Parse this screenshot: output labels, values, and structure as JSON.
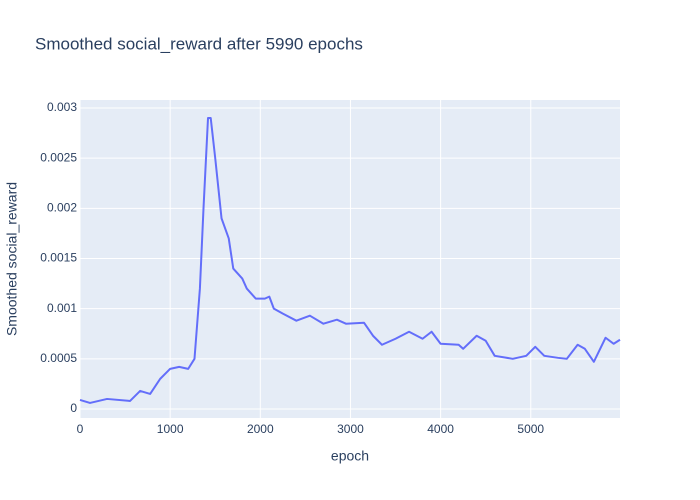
{
  "chart_data": {
    "type": "line",
    "title": "Smoothed social_reward after 5990 epochs",
    "x_label": "epoch",
    "y_label": "Smoothed social_reward",
    "x": [
      0,
      111,
      300,
      555,
      667,
      778,
      889,
      1000,
      1100,
      1200,
      1270,
      1330,
      1370,
      1420,
      1450,
      1500,
      1570,
      1650,
      1700,
      1800,
      1850,
      1950,
      2050,
      2100,
      2150,
      2250,
      2400,
      2550,
      2700,
      2850,
      2950,
      3150,
      3250,
      3350,
      3500,
      3650,
      3800,
      3900,
      4000,
      4200,
      4250,
      4400,
      4500,
      4600,
      4800,
      4950,
      5050,
      5150,
      5300,
      5400,
      5520,
      5600,
      5700,
      5830,
      5920,
      5990
    ],
    "series": [
      {
        "name": "Smoothed social_reward",
        "color": "#636efa",
        "values": [
          9e-05,
          6e-05,
          0.0001,
          8e-05,
          0.00018,
          0.00015,
          0.0003,
          0.0004,
          0.00042,
          0.0004,
          0.0005,
          0.0012,
          0.002,
          0.0029,
          0.0029,
          0.0025,
          0.0019,
          0.0017,
          0.0014,
          0.0013,
          0.0012,
          0.0011,
          0.0011,
          0.00112,
          0.001,
          0.00095,
          0.00088,
          0.00093,
          0.00085,
          0.00089,
          0.00085,
          0.00086,
          0.00073,
          0.00064,
          0.0007,
          0.00077,
          0.0007,
          0.00077,
          0.00065,
          0.00064,
          0.0006,
          0.00073,
          0.00068,
          0.00053,
          0.0005,
          0.00053,
          0.00062,
          0.00053,
          0.00051,
          0.0005,
          0.00064,
          0.0006,
          0.00047,
          0.00071,
          0.00065,
          0.00069
        ]
      }
    ],
    "xlim": [
      0,
      5990
    ],
    "xticks": [
      0,
      1000,
      2000,
      3000,
      4000,
      5000
    ],
    "ylim": [
      -9e-05,
      0.00308
    ],
    "yticks": [
      0,
      0.0005,
      0.001,
      0.0015,
      0.002,
      0.0025,
      0.003
    ],
    "grid": true
  }
}
